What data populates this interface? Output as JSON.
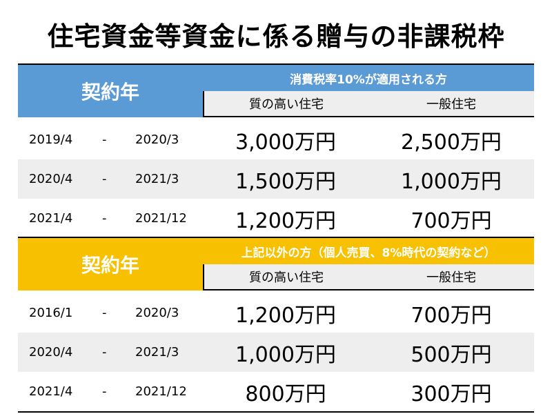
{
  "title": "住宅資金等資金に係る贈与の非課税枠",
  "colors": {
    "table1_accent": "#5b9bd5",
    "table2_accent": "#f7c000",
    "shade": "#eeeeee"
  },
  "tables": [
    {
      "label": "契約年",
      "caption": "消費税率10%が適用される方",
      "col_a": "質の高い住宅",
      "col_b": "一般住宅",
      "rows": [
        {
          "start": "2019/4",
          "sep": "-",
          "end": "2020/3",
          "a": "3,000万円",
          "b": "2,500万円"
        },
        {
          "start": "2020/4",
          "sep": "-",
          "end": "2021/3",
          "a": "1,500万円",
          "b": "1,000万円"
        },
        {
          "start": "2021/4",
          "sep": "-",
          "end": "2021/12",
          "a": "1,200万円",
          "b": "700万円"
        }
      ]
    },
    {
      "label": "契約年",
      "caption": "上記以外の方（個人売買、8%時代の契約など）",
      "col_a": "質の高い住宅",
      "col_b": "一般住宅",
      "rows": [
        {
          "start": "2016/1",
          "sep": "-",
          "end": "2020/3",
          "a": "1,200万円",
          "b": "700万円"
        },
        {
          "start": "2020/4",
          "sep": "-",
          "end": "2021/3",
          "a": "1,000万円",
          "b": "500万円"
        },
        {
          "start": "2021/4",
          "sep": "-",
          "end": "2021/12",
          "a": "800万円",
          "b": "300万円"
        }
      ]
    }
  ]
}
